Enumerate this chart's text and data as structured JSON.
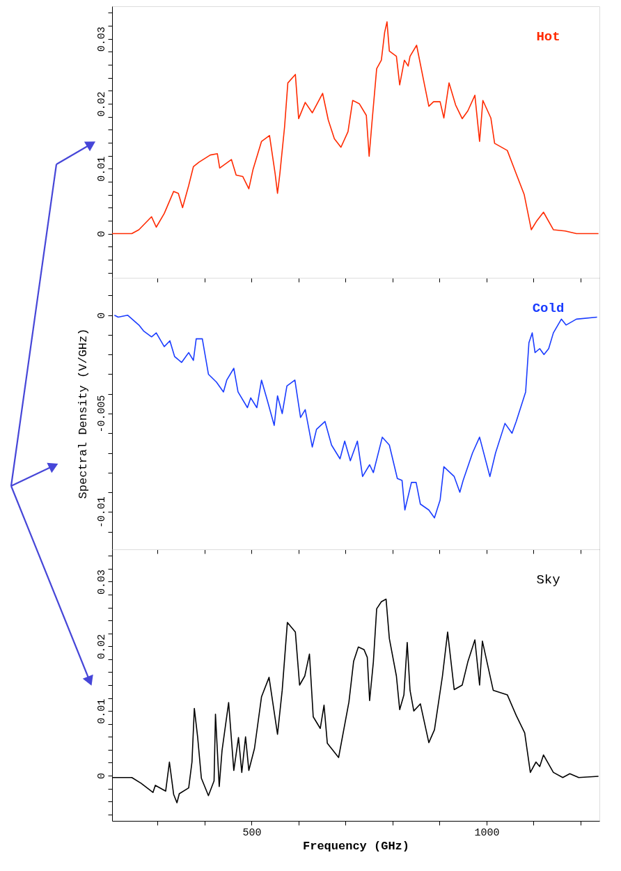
{
  "chart_data": [
    {
      "type": "line",
      "tick_labels": "y",
      "grid": false,
      "xlim": [
        203,
        1240
      ],
      "xticks": [
        {
          "value": 300,
          "label": null
        },
        {
          "value": 400,
          "label": null
        },
        {
          "value": 500,
          "label": null
        },
        {
          "value": 600,
          "label": null
        },
        {
          "value": 700,
          "label": null
        },
        {
          "value": 800,
          "label": null
        },
        {
          "value": 900,
          "label": null
        },
        {
          "value": 1000,
          "label": null
        },
        {
          "value": 1100,
          "label": null
        },
        {
          "value": 1200,
          "label": null
        }
      ],
      "ylim": [
        -0.0068,
        0.035
      ],
      "yticks": [
        {
          "value": -0.006,
          "label": null
        },
        {
          "value": -0.004,
          "label": null
        },
        {
          "value": -0.002,
          "label": null
        },
        0,
        {
          "value": 0.002,
          "label": null
        },
        {
          "value": 0.004,
          "label": null
        },
        {
          "value": 0.006,
          "label": null
        },
        {
          "value": 0.008,
          "label": null
        },
        0.01,
        {
          "value": 0.012,
          "label": null
        },
        {
          "value": 0.014,
          "label": null
        },
        {
          "value": 0.016,
          "label": null
        },
        {
          "value": 0.018,
          "label": null
        },
        0.02,
        {
          "value": 0.022,
          "label": null
        },
        {
          "value": 0.024,
          "label": null
        },
        {
          "value": 0.026,
          "label": null
        },
        {
          "value": 0.028,
          "label": null
        },
        0.03,
        {
          "value": 0.032,
          "label": null
        },
        {
          "value": 0.034,
          "label": null
        }
      ],
      "series": [
        {
          "name": "Hot",
          "color": "#ff2a00",
          "x": [
            203,
            245,
            260,
            287,
            297,
            314,
            334,
            344,
            353,
            366,
            376,
            388,
            412,
            427,
            432,
            457,
            467,
            481,
            494,
            503,
            521,
            538,
            550,
            555,
            560,
            570,
            577,
            593,
            600,
            614,
            629,
            651,
            663,
            676,
            690,
            705,
            715,
            729,
            744,
            750,
            756,
            766,
            776,
            783,
            788,
            793,
            808,
            815,
            825,
            833,
            837,
            851,
            867,
            877,
            887,
            901,
            909,
            920,
            934,
            948,
            960,
            975,
            985,
            992,
            1009,
            1017,
            1044,
            1063,
            1080,
            1095,
            1107,
            1121,
            1142,
            1167,
            1191,
            1238
          ],
          "values": [
            0.0,
            0.0,
            0.0006,
            0.0026,
            0.001,
            0.0031,
            0.0065,
            0.0062,
            0.004,
            0.0074,
            0.0103,
            0.011,
            0.0121,
            0.0123,
            0.0101,
            0.0114,
            0.009,
            0.0088,
            0.0069,
            0.0099,
            0.0142,
            0.0151,
            0.0092,
            0.0062,
            0.0092,
            0.0164,
            0.0232,
            0.0245,
            0.0177,
            0.0202,
            0.0186,
            0.0216,
            0.0175,
            0.0146,
            0.0133,
            0.0157,
            0.0205,
            0.02,
            0.0182,
            0.0119,
            0.0171,
            0.0254,
            0.0267,
            0.031,
            0.0326,
            0.0281,
            0.0273,
            0.0229,
            0.0267,
            0.0258,
            0.0273,
            0.029,
            0.0232,
            0.0196,
            0.0203,
            0.0203,
            0.0178,
            0.0232,
            0.0198,
            0.0177,
            0.0189,
            0.0213,
            0.0142,
            0.0205,
            0.0178,
            0.0139,
            0.0128,
            0.0092,
            0.006,
            0.0006,
            0.002,
            0.0033,
            0.0006,
            0.0004,
            0.0,
            0.0
          ]
        }
      ]
    },
    {
      "type": "line",
      "tick_labels": "y",
      "grid": false,
      "ylabel": "Spectral Density (V/GHz)",
      "xlim": [
        203,
        1240
      ],
      "xticks": [
        {
          "value": 300,
          "label": null
        },
        {
          "value": 400,
          "label": null
        },
        {
          "value": 500,
          "label": null
        },
        {
          "value": 600,
          "label": null
        },
        {
          "value": 700,
          "label": null
        },
        {
          "value": 800,
          "label": null
        },
        {
          "value": 900,
          "label": null
        },
        {
          "value": 1000,
          "label": null
        },
        {
          "value": 1100,
          "label": null
        },
        {
          "value": 1200,
          "label": null
        }
      ],
      "ylim": [
        -0.0119,
        0.0019
      ],
      "yticks": [
        {
          "value": -0.011,
          "label": null
        },
        -0.01,
        {
          "value": -0.009,
          "label": null
        },
        {
          "value": -0.008,
          "label": null
        },
        {
          "value": -0.007,
          "label": null
        },
        {
          "value": -0.006,
          "label": null
        },
        -0.005,
        {
          "value": -0.004,
          "label": null
        },
        {
          "value": -0.003,
          "label": null
        },
        {
          "value": -0.002,
          "label": null
        },
        {
          "value": -0.001,
          "label": null
        },
        0,
        {
          "value": 0.001,
          "label": null
        }
      ],
      "series": [
        {
          "name": "Cold",
          "color": "#1a3cff",
          "x": [
            208,
            216,
            236,
            260,
            270,
            287,
            297,
            314,
            326,
            336,
            351,
            366,
            376,
            382,
            395,
            408,
            425,
            440,
            447,
            462,
            471,
            491,
            498,
            511,
            521,
            533,
            548,
            555,
            565,
            575,
            592,
            604,
            614,
            629,
            638,
            656,
            670,
            688,
            698,
            710,
            725,
            736,
            751,
            759,
            778,
            793,
            810,
            820,
            826,
            840,
            850,
            859,
            877,
            889,
            901,
            909,
            931,
            943,
            950,
            970,
            985,
            1007,
            1019,
            1039,
            1054,
            1063,
            1083,
            1090,
            1097,
            1103,
            1113,
            1122,
            1132,
            1142,
            1159,
            1169,
            1191,
            1235
          ],
          "values": [
            0.0,
            -0.0001,
            0.0,
            -0.0005,
            -0.0008,
            -0.0011,
            -0.0009,
            -0.0016,
            -0.0013,
            -0.0021,
            -0.0024,
            -0.0019,
            -0.0023,
            -0.0012,
            -0.0012,
            -0.003,
            -0.0034,
            -0.0039,
            -0.0033,
            -0.0027,
            -0.0039,
            -0.0047,
            -0.0042,
            -0.0047,
            -0.0033,
            -0.0043,
            -0.0056,
            -0.0041,
            -0.005,
            -0.0036,
            -0.0033,
            -0.0052,
            -0.0048,
            -0.0067,
            -0.0058,
            -0.0054,
            -0.0066,
            -0.0073,
            -0.0064,
            -0.0074,
            -0.0064,
            -0.0082,
            -0.0076,
            -0.008,
            -0.0062,
            -0.0066,
            -0.0083,
            -0.0084,
            -0.0099,
            -0.0085,
            -0.0085,
            -0.0096,
            -0.0099,
            -0.0103,
            -0.0094,
            -0.0077,
            -0.0082,
            -0.009,
            -0.0084,
            -0.007,
            -0.0062,
            -0.0082,
            -0.007,
            -0.0055,
            -0.006,
            -0.0054,
            -0.0039,
            -0.0014,
            -0.0009,
            -0.0019,
            -0.0017,
            -0.002,
            -0.0017,
            -0.0009,
            -0.0002,
            -0.0005,
            -0.0002,
            -0.0001
          ]
        }
      ]
    },
    {
      "type": "line",
      "grid": false,
      "xlabel": "Frequency (GHz)",
      "xlim": [
        203,
        1240
      ],
      "xticks": [
        {
          "value": 300,
          "label": null
        },
        {
          "value": 400,
          "label": null
        },
        500,
        {
          "value": 600,
          "label": null
        },
        {
          "value": 700,
          "label": null
        },
        {
          "value": 800,
          "label": null
        },
        {
          "value": 900,
          "label": null
        },
        1000,
        {
          "value": 1100,
          "label": null
        },
        {
          "value": 1200,
          "label": null
        }
      ],
      "ylim": [
        -0.007,
        0.035
      ],
      "yticks": [
        {
          "value": -0.006,
          "label": null
        },
        {
          "value": -0.004,
          "label": null
        },
        {
          "value": -0.002,
          "label": null
        },
        0,
        {
          "value": 0.002,
          "label": null
        },
        {
          "value": 0.004,
          "label": null
        },
        {
          "value": 0.006,
          "label": null
        },
        {
          "value": 0.008,
          "label": null
        },
        0.01,
        {
          "value": 0.012,
          "label": null
        },
        {
          "value": 0.014,
          "label": null
        },
        {
          "value": 0.016,
          "label": null
        },
        {
          "value": 0.018,
          "label": null
        },
        0.02,
        {
          "value": 0.022,
          "label": null
        },
        {
          "value": 0.024,
          "label": null
        },
        {
          "value": 0.026,
          "label": null
        },
        {
          "value": 0.028,
          "label": null
        },
        0.03,
        {
          "value": 0.032,
          "label": null
        },
        {
          "value": 0.034,
          "label": null
        }
      ],
      "series": [
        {
          "name": "Sky",
          "color": "#000000",
          "x": [
            203,
            245,
            265,
            290,
            295,
            317,
            325,
            334,
            341,
            346,
            366,
            373,
            378,
            385,
            393,
            408,
            420,
            423,
            431,
            437,
            451,
            462,
            472,
            479,
            487,
            494,
            506,
            521,
            537,
            555,
            565,
            576,
            593,
            602,
            613,
            623,
            631,
            646,
            654,
            661,
            685,
            707,
            717,
            727,
            739,
            746,
            751,
            759,
            766,
            776,
            786,
            793,
            808,
            815,
            824,
            831,
            837,
            845,
            859,
            877,
            889,
            906,
            917,
            931,
            948,
            960,
            975,
            985,
            991,
            1014,
            1044,
            1063,
            1081,
            1093,
            1105,
            1113,
            1121,
            1142,
            1162,
            1177,
            1196,
            1238
          ],
          "values": [
            -0.0003,
            -0.0003,
            -0.0012,
            -0.0026,
            -0.0015,
            -0.0024,
            0.0021,
            -0.0029,
            -0.0042,
            -0.0028,
            -0.0019,
            0.0021,
            0.0104,
            0.006,
            -0.0004,
            -0.0031,
            -0.0008,
            0.0095,
            -0.0017,
            0.0039,
            0.0113,
            0.0008,
            0.0059,
            0.0005,
            0.006,
            0.0008,
            0.0042,
            0.0122,
            0.0152,
            0.0064,
            0.0132,
            0.0237,
            0.0222,
            0.014,
            0.0154,
            0.0188,
            0.0091,
            0.0073,
            0.0109,
            0.005,
            0.0028,
            0.0114,
            0.0177,
            0.0199,
            0.0195,
            0.0183,
            0.0116,
            0.0176,
            0.0258,
            0.0269,
            0.0273,
            0.0212,
            0.0154,
            0.0102,
            0.0125,
            0.0206,
            0.0132,
            0.01,
            0.0111,
            0.0051,
            0.0071,
            0.0154,
            0.0222,
            0.0133,
            0.014,
            0.0176,
            0.021,
            0.014,
            0.0208,
            0.0132,
            0.0125,
            0.0093,
            0.0066,
            0.0005,
            0.0021,
            0.0014,
            0.0032,
            0.0005,
            -0.0003,
            0.0003,
            -0.0003,
            -0.0001
          ]
        }
      ]
    }
  ]
}
